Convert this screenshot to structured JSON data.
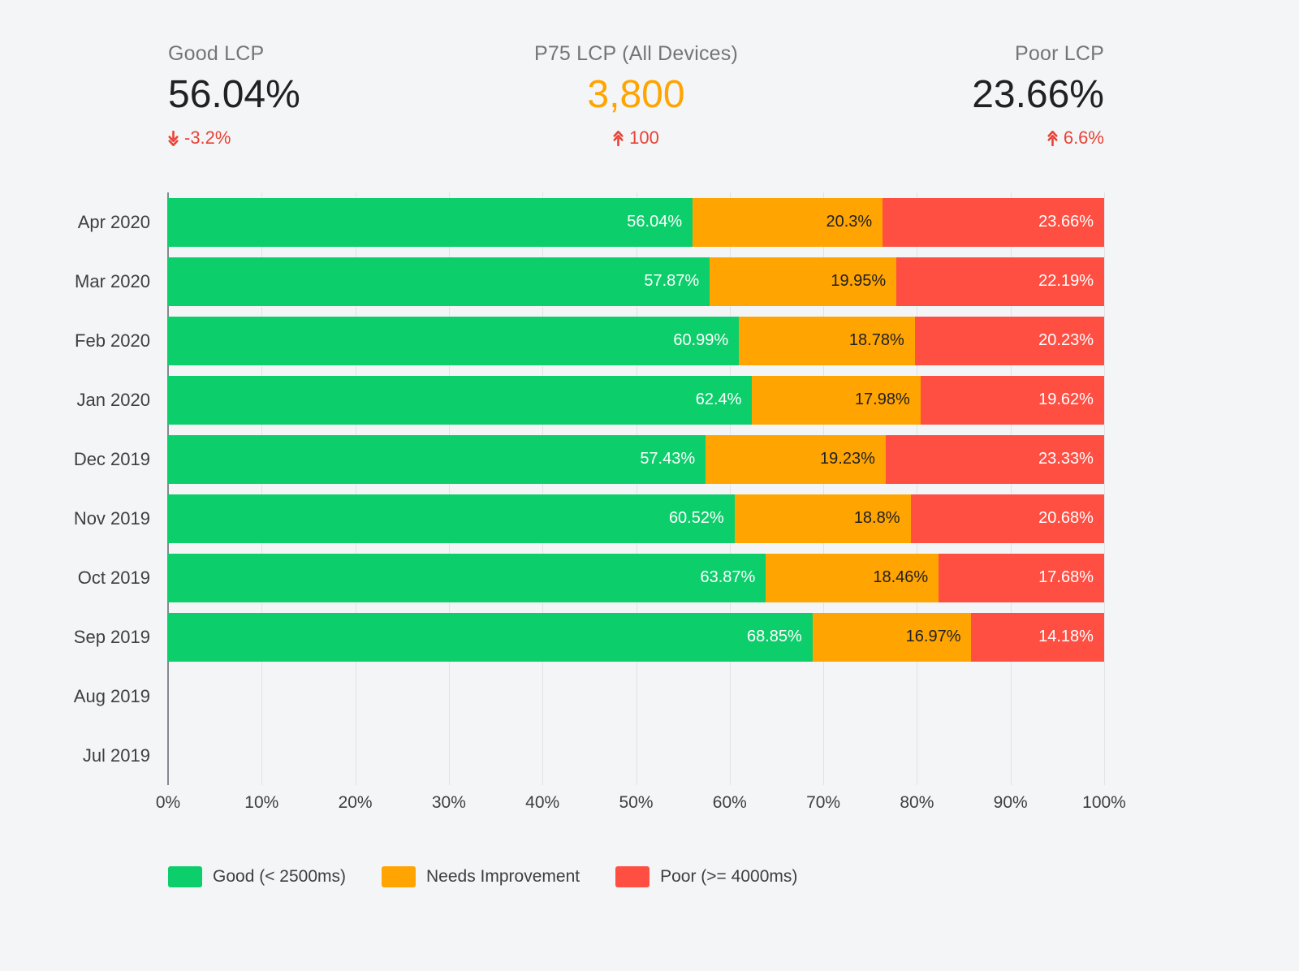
{
  "kpis": [
    {
      "label": "Good LCP",
      "value": "56.04%",
      "value_color": "#202124",
      "delta": "-3.2%",
      "delta_direction": "down"
    },
    {
      "label": "P75 LCP (All Devices)",
      "value": "3,800",
      "value_color": "#FFA400",
      "delta": "100",
      "delta_direction": "up"
    },
    {
      "label": "Poor LCP",
      "value": "23.66%",
      "value_color": "#202124",
      "delta": "6.6%",
      "delta_direction": "up"
    }
  ],
  "chart_data": {
    "type": "bar",
    "orientation": "horizontal",
    "stacked": true,
    "categories": [
      "Apr 2020",
      "Mar 2020",
      "Feb 2020",
      "Jan 2020",
      "Dec 2019",
      "Nov 2019",
      "Oct 2019",
      "Sep 2019",
      "Aug 2019",
      "Jul 2019"
    ],
    "series": [
      {
        "name": "Good (< 2500ms)",
        "color": "#0CCE6B",
        "label_color": "#ffffff",
        "values": [
          56.04,
          57.87,
          60.99,
          62.4,
          57.43,
          60.52,
          63.87,
          68.85,
          null,
          null
        ]
      },
      {
        "name": "Needs Improvement",
        "color": "#FFA400",
        "label_color": "#202124",
        "values": [
          20.3,
          19.95,
          18.78,
          17.98,
          19.23,
          18.8,
          18.46,
          16.97,
          null,
          null
        ]
      },
      {
        "name": "Poor (>= 4000ms)",
        "color": "#FF4E42",
        "label_color": "#ffffff",
        "values": [
          23.66,
          22.19,
          20.23,
          19.62,
          23.33,
          20.68,
          17.68,
          14.18,
          null,
          null
        ]
      }
    ],
    "xlim": [
      0,
      100
    ],
    "x_ticks": [
      0,
      10,
      20,
      30,
      40,
      50,
      60,
      70,
      80,
      90,
      100
    ],
    "x_tick_suffix": "%",
    "grid": true,
    "legend_position": "bottom"
  },
  "legend": [
    {
      "label": "Good (< 2500ms)",
      "color": "#0CCE6B"
    },
    {
      "label": "Needs Improvement",
      "color": "#FFA400"
    },
    {
      "label": "Poor (>= 4000ms)",
      "color": "#FF4E42"
    }
  ],
  "colors": {
    "background": "#f4f5f7",
    "delta_red": "#E94235",
    "gridline": "#e2e3e7",
    "axis_line": "#85898f",
    "text_primary": "#202124",
    "text_secondary": "#757575"
  }
}
